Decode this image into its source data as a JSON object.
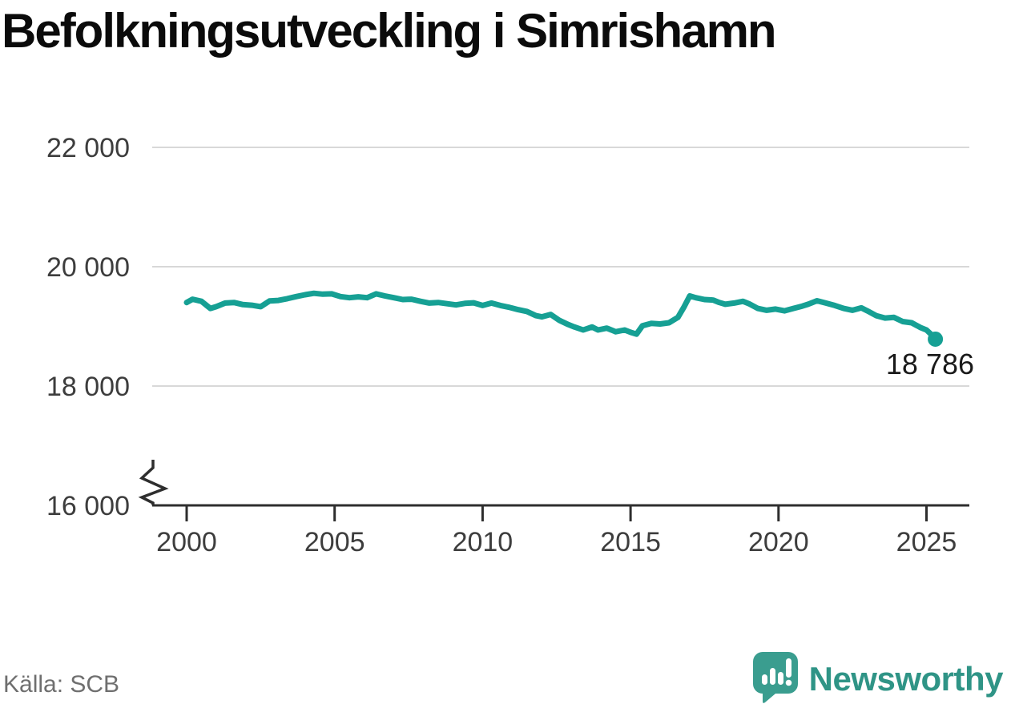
{
  "title": "Befolkningsutveckling i Simrishamn",
  "source": {
    "label": "Källa: SCB"
  },
  "branding": {
    "name": "Newsworthy",
    "icon": "newsworthy-bubble-chart-icon"
  },
  "colors": {
    "line": "#16a094",
    "grid": "#d8d8d8",
    "axis": "#2e2e2e",
    "tick_text": "#3d3d3d",
    "annotation_text": "#1a1a1a",
    "title_text": "#0b0b0b",
    "source_text": "#6f6f6f",
    "logo_bubble": "#3a9d8f",
    "logo_text": "#2f9486"
  },
  "chart_data": {
    "type": "line",
    "title": "Befolkningsutveckling i Simrishamn",
    "xlabel": "",
    "ylabel": "",
    "grid": "horizontal",
    "legend": "none",
    "axis_break_bottom_left": true,
    "xlim": [
      1998.85,
      2026.45
    ],
    "ylim": [
      16000,
      22700
    ],
    "x_ticks": [
      2000,
      2005,
      2010,
      2015,
      2020,
      2025
    ],
    "x_tick_labels": [
      "2000",
      "2005",
      "2010",
      "2015",
      "2020",
      "2025"
    ],
    "y_ticks": [
      16000,
      18000,
      20000,
      22000
    ],
    "y_tick_labels": [
      "16 000",
      "18 000",
      "20 000",
      "22 000"
    ],
    "last_point_label": "18 786",
    "last_point_value": 18786,
    "series": [
      {
        "name": "Befolkning",
        "points": [
          [
            2000.0,
            19400
          ],
          [
            2000.2,
            19455
          ],
          [
            2000.5,
            19420
          ],
          [
            2000.8,
            19300
          ],
          [
            2001.0,
            19330
          ],
          [
            2001.3,
            19390
          ],
          [
            2001.6,
            19400
          ],
          [
            2001.9,
            19365
          ],
          [
            2002.2,
            19355
          ],
          [
            2002.5,
            19330
          ],
          [
            2002.8,
            19425
          ],
          [
            2003.1,
            19435
          ],
          [
            2003.4,
            19465
          ],
          [
            2003.7,
            19500
          ],
          [
            2004.0,
            19530
          ],
          [
            2004.3,
            19555
          ],
          [
            2004.6,
            19540
          ],
          [
            2004.9,
            19545
          ],
          [
            2005.2,
            19500
          ],
          [
            2005.5,
            19480
          ],
          [
            2005.8,
            19495
          ],
          [
            2006.1,
            19480
          ],
          [
            2006.4,
            19545
          ],
          [
            2006.7,
            19510
          ],
          [
            2007.0,
            19480
          ],
          [
            2007.3,
            19450
          ],
          [
            2007.6,
            19455
          ],
          [
            2007.9,
            19420
          ],
          [
            2008.2,
            19390
          ],
          [
            2008.5,
            19400
          ],
          [
            2008.8,
            19380
          ],
          [
            2009.1,
            19360
          ],
          [
            2009.4,
            19385
          ],
          [
            2009.7,
            19395
          ],
          [
            2010.0,
            19350
          ],
          [
            2010.3,
            19390
          ],
          [
            2010.6,
            19350
          ],
          [
            2010.9,
            19320
          ],
          [
            2011.2,
            19280
          ],
          [
            2011.5,
            19250
          ],
          [
            2011.8,
            19180
          ],
          [
            2012.0,
            19160
          ],
          [
            2012.3,
            19200
          ],
          [
            2012.6,
            19100
          ],
          [
            2012.9,
            19030
          ],
          [
            2013.1,
            18990
          ],
          [
            2013.4,
            18940
          ],
          [
            2013.7,
            18990
          ],
          [
            2013.9,
            18940
          ],
          [
            2014.2,
            18970
          ],
          [
            2014.5,
            18910
          ],
          [
            2014.8,
            18940
          ],
          [
            2015.0,
            18900
          ],
          [
            2015.2,
            18870
          ],
          [
            2015.4,
            19010
          ],
          [
            2015.7,
            19050
          ],
          [
            2016.0,
            19040
          ],
          [
            2016.3,
            19060
          ],
          [
            2016.6,
            19150
          ],
          [
            2016.8,
            19320
          ],
          [
            2017.0,
            19510
          ],
          [
            2017.2,
            19480
          ],
          [
            2017.5,
            19450
          ],
          [
            2017.8,
            19440
          ],
          [
            2018.0,
            19400
          ],
          [
            2018.2,
            19370
          ],
          [
            2018.5,
            19390
          ],
          [
            2018.8,
            19420
          ],
          [
            2019.0,
            19380
          ],
          [
            2019.3,
            19300
          ],
          [
            2019.6,
            19270
          ],
          [
            2019.9,
            19290
          ],
          [
            2020.2,
            19260
          ],
          [
            2020.5,
            19300
          ],
          [
            2020.8,
            19340
          ],
          [
            2021.0,
            19370
          ],
          [
            2021.3,
            19430
          ],
          [
            2021.6,
            19390
          ],
          [
            2021.9,
            19350
          ],
          [
            2022.2,
            19300
          ],
          [
            2022.5,
            19270
          ],
          [
            2022.8,
            19310
          ],
          [
            2023.0,
            19260
          ],
          [
            2023.3,
            19180
          ],
          [
            2023.6,
            19140
          ],
          [
            2023.9,
            19150
          ],
          [
            2024.2,
            19080
          ],
          [
            2024.5,
            19060
          ],
          [
            2024.8,
            18980
          ],
          [
            2025.0,
            18940
          ],
          [
            2025.15,
            18870
          ],
          [
            2025.3,
            18786
          ]
        ]
      }
    ]
  }
}
